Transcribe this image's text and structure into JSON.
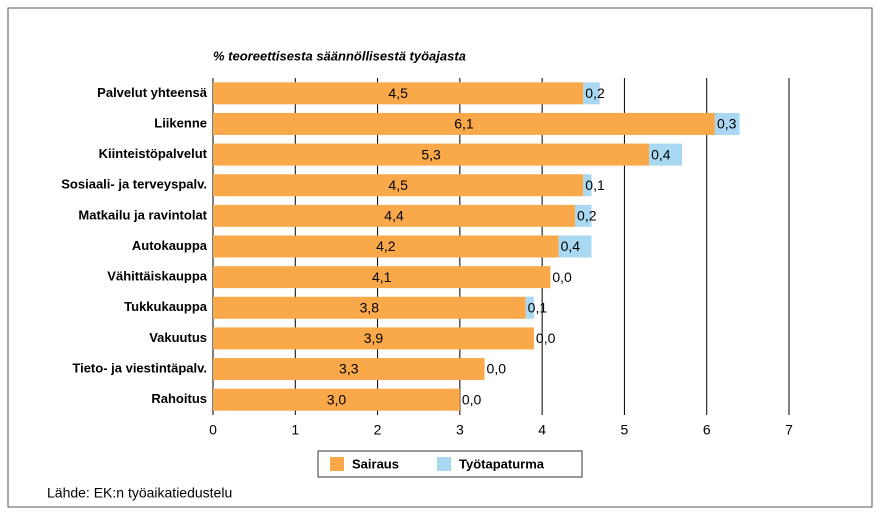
{
  "chart_data": {
    "type": "bar",
    "orientation": "horizontal",
    "stacked": true,
    "subtitle": "% teoreettisesta säännöllisestä työajasta",
    "categories": [
      "Palvelut yhteensä",
      "Liikenne",
      "Kiinteistöpalvelut",
      "Sosiaali- ja terveyspalv.",
      "Matkailu ja ravintolat",
      "Autokauppa",
      "Vähittäiskauppa",
      "Tukkukauppa",
      "Vakuutus",
      "Tieto- ja viestintäpalv.",
      "Rahoitus"
    ],
    "series": [
      {
        "name": "Sairaus",
        "color": "#f9a84a",
        "values": [
          4.5,
          6.1,
          5.3,
          4.5,
          4.4,
          4.2,
          4.1,
          3.8,
          3.9,
          3.3,
          3.0
        ],
        "value_labels": [
          "4,5",
          "6,1",
          "5,3",
          "4,5",
          "4,4",
          "4,2",
          "4,1",
          "3,8",
          "3,9",
          "3,3",
          "3,0"
        ]
      },
      {
        "name": "Työtapaturma",
        "color": "#a9d9f2",
        "values": [
          0.2,
          0.3,
          0.4,
          0.1,
          0.2,
          0.4,
          0.0,
          0.1,
          0.0,
          0.0,
          0.0
        ],
        "value_labels": [
          "0,2",
          "0,3",
          "0,4",
          "0,1",
          "0,2",
          "0,4",
          "0,0",
          "0,1",
          "0,0",
          "0,0",
          "0,0"
        ]
      }
    ],
    "xlim": [
      0,
      7
    ],
    "xticks": [
      0,
      1,
      2,
      3,
      4,
      5,
      6,
      7
    ],
    "grid": true,
    "source": "Lähde: EK:n työaikatiedustelu"
  }
}
